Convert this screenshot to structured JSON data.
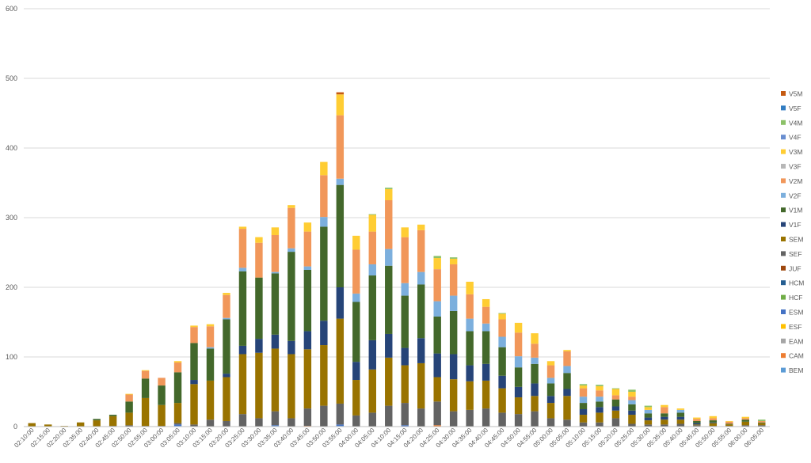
{
  "chart_data": {
    "type": "bar",
    "stacked": true,
    "ylim": [
      0,
      600
    ],
    "yticks": [
      0,
      100,
      200,
      300,
      400,
      500,
      600
    ],
    "grid": true,
    "legend_position": "right",
    "categories": [
      "02:10:00",
      "02:15:00",
      "02:20:00",
      "02:35:00",
      "02:40:00",
      "02:45:00",
      "02:50:00",
      "02:55:00",
      "03:00:00",
      "03:05:00",
      "03:10:00",
      "03:15:00",
      "03:20:00",
      "03:25:00",
      "03:30:00",
      "03:35:00",
      "03:40:00",
      "03:45:00",
      "03:50:00",
      "03:55:00",
      "04:00:00",
      "04:05:00",
      "04:10:00",
      "04:15:00",
      "04:20:00",
      "04:25:00",
      "04:30:00",
      "04:35:00",
      "04:40:00",
      "04:45:00",
      "04:50:00",
      "04:55:00",
      "05:00:00",
      "05:05:00",
      "05:10:00",
      "05:15:00",
      "05:20:00",
      "05:25:00",
      "05:30:00",
      "05:35:00",
      "05:40:00",
      "05:45:00",
      "05:50:00",
      "05:55:00",
      "06:00:00",
      "06:05:00"
    ],
    "series": [
      {
        "name": "BEM",
        "color": "#5b9bd5",
        "values": [
          0,
          0,
          0,
          0,
          0,
          0,
          0,
          0,
          0,
          1,
          0,
          0,
          0,
          0,
          0,
          1,
          0,
          0,
          0,
          1,
          0,
          0,
          0,
          0,
          0,
          0,
          0,
          0,
          0,
          0,
          0,
          0,
          0,
          0,
          0,
          0,
          0,
          0,
          0,
          0,
          0,
          0,
          0,
          0,
          0,
          0
        ]
      },
      {
        "name": "CAM",
        "color": "#ed7d31",
        "values": [
          0,
          0,
          0,
          0,
          0,
          0,
          0,
          0,
          0,
          0,
          0,
          0,
          0,
          0,
          0,
          0,
          0,
          1,
          0,
          0,
          0,
          0,
          0,
          0,
          0,
          2,
          0,
          0,
          0,
          0,
          0,
          0,
          0,
          0,
          0,
          0,
          0,
          0,
          0,
          0,
          0,
          0,
          0,
          0,
          0,
          0
        ]
      },
      {
        "name": "EAM",
        "color": "#a5a5a5",
        "values": [
          0,
          0,
          0,
          0,
          0,
          0,
          0,
          0,
          0,
          0,
          0,
          0,
          0,
          0,
          0,
          0,
          0,
          0,
          0,
          0,
          0,
          0,
          0,
          0,
          0,
          0,
          0,
          0,
          0,
          0,
          0,
          0,
          0,
          0,
          0,
          0,
          0,
          0,
          0,
          0,
          0,
          0,
          0,
          0,
          0,
          0
        ]
      },
      {
        "name": "ESF",
        "color": "#ffc000",
        "values": [
          0,
          0,
          0,
          0,
          0,
          0,
          0,
          0,
          0,
          0,
          0,
          0,
          0,
          0,
          0,
          0,
          0,
          0,
          0,
          0,
          0,
          0,
          0,
          0,
          0,
          0,
          0,
          0,
          0,
          0,
          0,
          0,
          0,
          0,
          0,
          0,
          0,
          0,
          0,
          0,
          0,
          0,
          0,
          0,
          0,
          0
        ]
      },
      {
        "name": "ESM",
        "color": "#4472c4",
        "values": [
          0,
          0,
          0,
          0,
          0,
          0,
          0,
          0,
          0,
          2,
          0,
          0,
          0,
          0,
          0,
          1,
          0,
          0,
          0,
          2,
          0,
          0,
          0,
          2,
          0,
          0,
          0,
          0,
          0,
          0,
          0,
          0,
          0,
          0,
          0,
          0,
          0,
          0,
          0,
          0,
          0,
          0,
          0,
          0,
          0,
          0
        ]
      },
      {
        "name": "HCF",
        "color": "#70ad47",
        "values": [
          0,
          0,
          0,
          0,
          0,
          0,
          0,
          0,
          0,
          0,
          0,
          0,
          0,
          0,
          0,
          0,
          0,
          0,
          0,
          0,
          0,
          0,
          0,
          0,
          0,
          0,
          0,
          0,
          0,
          0,
          0,
          0,
          0,
          0,
          0,
          0,
          0,
          0,
          0,
          0,
          0,
          0,
          0,
          0,
          0,
          0
        ]
      },
      {
        "name": "HCM",
        "color": "#255e91",
        "values": [
          0,
          0,
          0,
          0,
          0,
          0,
          0,
          0,
          0,
          0,
          0,
          0,
          0,
          0,
          0,
          0,
          0,
          0,
          0,
          0,
          0,
          0,
          0,
          0,
          0,
          0,
          0,
          0,
          0,
          0,
          0,
          0,
          0,
          0,
          0,
          0,
          0,
          0,
          0,
          0,
          0,
          0,
          0,
          0,
          0,
          0
        ]
      },
      {
        "name": "JUF",
        "color": "#9e480e",
        "values": [
          0,
          0,
          0,
          0,
          0,
          0,
          0,
          0,
          0,
          0,
          0,
          0,
          0,
          0,
          0,
          0,
          0,
          0,
          0,
          0,
          0,
          0,
          0,
          0,
          0,
          0,
          0,
          0,
          0,
          0,
          0,
          0,
          0,
          0,
          0,
          0,
          0,
          0,
          0,
          0,
          0,
          0,
          0,
          0,
          0,
          0
        ]
      },
      {
        "name": "SEF",
        "color": "#636363",
        "values": [
          0,
          0,
          0,
          0,
          0,
          1,
          2,
          1,
          1,
          2,
          3,
          10,
          8,
          18,
          12,
          20,
          12,
          25,
          30,
          30,
          16,
          20,
          30,
          32,
          26,
          34,
          22,
          24,
          26,
          20,
          18,
          22,
          12,
          10,
          6,
          6,
          12,
          4,
          3,
          3,
          4,
          2,
          1,
          1,
          2,
          2
        ]
      },
      {
        "name": "SEM",
        "color": "#997300",
        "values": [
          5,
          3,
          1,
          6,
          9,
          14,
          18,
          40,
          30,
          29,
          58,
          56,
          63,
          86,
          94,
          90,
          92,
          85,
          87,
          122,
          51,
          62,
          69,
          54,
          65,
          35,
          46,
          41,
          40,
          35,
          24,
          22,
          22,
          34,
          11,
          14,
          11,
          13,
          6,
          7,
          6,
          1,
          4,
          2,
          5,
          3
        ]
      },
      {
        "name": "V1F",
        "color": "#264478",
        "values": [
          0,
          0,
          0,
          0,
          0,
          0,
          0,
          0,
          0,
          0,
          6,
          0,
          5,
          12,
          20,
          20,
          19,
          26,
          35,
          45,
          26,
          42,
          34,
          25,
          36,
          34,
          36,
          23,
          24,
          18,
          15,
          18,
          10,
          10,
          8,
          8,
          6,
          6,
          4,
          4,
          4,
          2,
          1,
          0,
          0,
          0
        ]
      },
      {
        "name": "V1M",
        "color": "#43682b",
        "values": [
          0,
          0,
          0,
          0,
          2,
          2,
          16,
          28,
          28,
          44,
          53,
          46,
          78,
          107,
          88,
          88,
          128,
          88,
          135,
          147,
          86,
          93,
          98,
          75,
          77,
          53,
          62,
          49,
          47,
          41,
          28,
          28,
          18,
          23,
          9,
          8,
          10,
          9,
          6,
          5,
          6,
          3,
          3,
          1,
          3,
          1
        ]
      },
      {
        "name": "V2F",
        "color": "#7cafdd",
        "values": [
          0,
          0,
          0,
          0,
          0,
          0,
          0,
          0,
          0,
          0,
          0,
          2,
          2,
          5,
          0,
          2,
          5,
          5,
          14,
          9,
          12,
          16,
          24,
          18,
          18,
          22,
          22,
          18,
          11,
          15,
          16,
          9,
          8,
          10,
          9,
          7,
          0,
          6,
          5,
          0,
          4,
          0,
          0,
          0,
          0,
          0
        ]
      },
      {
        "name": "V2M",
        "color": "#f1975a",
        "values": [
          0,
          0,
          0,
          0,
          0,
          0,
          10,
          11,
          11,
          14,
          23,
          30,
          33,
          56,
          50,
          53,
          58,
          50,
          60,
          91,
          63,
          47,
          70,
          66,
          60,
          46,
          45,
          35,
          24,
          25,
          34,
          20,
          18,
          21,
          12,
          9,
          6,
          5,
          0,
          9,
          0,
          3,
          3,
          3,
          2,
          2
        ]
      },
      {
        "name": "V3F",
        "color": "#b7b7b7",
        "values": [
          0,
          0,
          0,
          0,
          0,
          0,
          0,
          0,
          0,
          0,
          0,
          0,
          0,
          0,
          0,
          0,
          0,
          0,
          0,
          0,
          0,
          0,
          0,
          0,
          0,
          0,
          0,
          0,
          0,
          0,
          0,
          0,
          0,
          0,
          0,
          0,
          0,
          0,
          0,
          0,
          0,
          0,
          0,
          0,
          0,
          0
        ]
      },
      {
        "name": "V3M",
        "color": "#ffcd33",
        "values": [
          0,
          0,
          0,
          0,
          0,
          0,
          1,
          1,
          0,
          2,
          2,
          3,
          3,
          3,
          8,
          11,
          4,
          13,
          19,
          30,
          20,
          24,
          16,
          14,
          8,
          16,
          8,
          18,
          11,
          8,
          14,
          15,
          6,
          2,
          4,
          6,
          9,
          7,
          4,
          3,
          2,
          2,
          3,
          1,
          2,
          0
        ]
      },
      {
        "name": "V4F",
        "color": "#698ed0",
        "values": [
          0,
          0,
          0,
          0,
          0,
          0,
          0,
          0,
          0,
          0,
          0,
          0,
          0,
          0,
          0,
          0,
          0,
          0,
          0,
          0,
          0,
          0,
          0,
          0,
          0,
          0,
          0,
          0,
          0,
          0,
          0,
          0,
          0,
          0,
          0,
          0,
          0,
          0,
          0,
          0,
          0,
          0,
          0,
          0,
          0,
          0
        ]
      },
      {
        "name": "V4M",
        "color": "#8cc168",
        "values": [
          0,
          0,
          0,
          0,
          0,
          0,
          0,
          0,
          0,
          0,
          0,
          0,
          0,
          0,
          0,
          0,
          0,
          0,
          0,
          0,
          0,
          1,
          2,
          0,
          0,
          3,
          2,
          0,
          0,
          1,
          0,
          0,
          0,
          0,
          2,
          2,
          1,
          3,
          2,
          0,
          0,
          0,
          0,
          0,
          0,
          2
        ]
      },
      {
        "name": "V5F",
        "color": "#327dc2",
        "values": [
          0,
          0,
          0,
          0,
          0,
          0,
          0,
          0,
          0,
          0,
          0,
          0,
          0,
          0,
          0,
          0,
          0,
          0,
          0,
          0,
          0,
          0,
          0,
          0,
          0,
          0,
          0,
          0,
          0,
          0,
          0,
          0,
          0,
          0,
          0,
          0,
          0,
          0,
          0,
          0,
          0,
          0,
          0,
          0,
          0,
          0
        ]
      },
      {
        "name": "V5M",
        "color": "#c55a11",
        "values": [
          0,
          0,
          0,
          0,
          0,
          0,
          0,
          0,
          0,
          0,
          0,
          0,
          0,
          0,
          0,
          0,
          0,
          0,
          0,
          3,
          0,
          0,
          0,
          0,
          0,
          0,
          0,
          0,
          0,
          0,
          0,
          0,
          0,
          0,
          0,
          0,
          0,
          0,
          0,
          0,
          0,
          0,
          0,
          0,
          0,
          0
        ]
      }
    ]
  }
}
